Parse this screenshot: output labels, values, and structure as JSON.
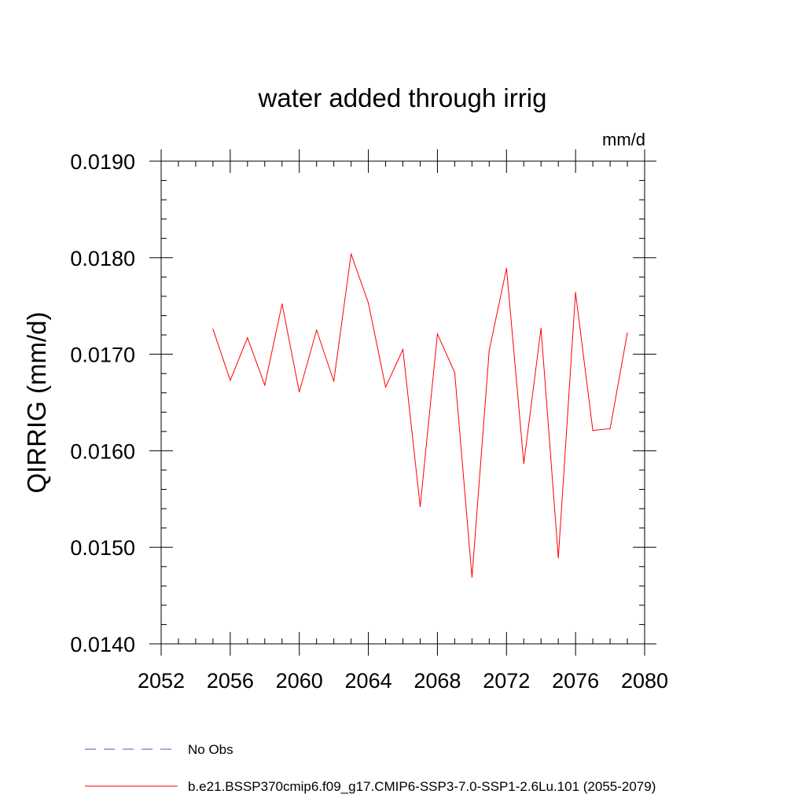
{
  "chart_data": {
    "type": "line",
    "title": "water added through irrig",
    "units_label": "mm/d",
    "ylabel": "QIRRIG  (mm/d)",
    "xlabel": "",
    "xlim": [
      2052,
      2080
    ],
    "ylim": [
      0.014,
      0.019
    ],
    "x_ticks": [
      {
        "value": 2052,
        "label": "2052"
      },
      {
        "value": 2056,
        "label": "2056"
      },
      {
        "value": 2060,
        "label": "2060"
      },
      {
        "value": 2064,
        "label": "2064"
      },
      {
        "value": 2068,
        "label": "2068"
      },
      {
        "value": 2072,
        "label": "2072"
      },
      {
        "value": 2076,
        "label": "2076"
      },
      {
        "value": 2080,
        "label": "2080"
      }
    ],
    "y_ticks": [
      {
        "value": 0.014,
        "label": "0.0140"
      },
      {
        "value": 0.015,
        "label": "0.0150"
      },
      {
        "value": 0.016,
        "label": "0.0160"
      },
      {
        "value": 0.017,
        "label": "0.0170"
      },
      {
        "value": 0.018,
        "label": "0.0180"
      },
      {
        "value": 0.019,
        "label": "0.0190"
      }
    ],
    "grid": false,
    "legend_position": "bottom",
    "series": [
      {
        "name": "No Obs",
        "color": "#5555aa",
        "style": "dashed",
        "x": [],
        "values": []
      },
      {
        "name": "b.e21.BSSP370cmip6.f09_g17.CMIP6-SSP3-7.0-SSP1-2.6Lu.101 (2055-2079)",
        "color": "#ff0000",
        "style": "solid",
        "x": [
          2055,
          2056,
          2057,
          2058,
          2059,
          2060,
          2061,
          2062,
          2063,
          2064,
          2065,
          2066,
          2067,
          2068,
          2069,
          2070,
          2071,
          2072,
          2073,
          2074,
          2075,
          2076,
          2077,
          2078,
          2079
        ],
        "values": [
          0.01726,
          0.01673,
          0.01717,
          0.01668,
          0.01752,
          0.01661,
          0.01725,
          0.01672,
          0.01804,
          0.01753,
          0.01666,
          0.01705,
          0.01542,
          0.01721,
          0.01681,
          0.01469,
          0.01704,
          0.01789,
          0.01587,
          0.01727,
          0.01489,
          0.01764,
          0.01621,
          0.01623,
          0.01722
        ]
      }
    ]
  }
}
